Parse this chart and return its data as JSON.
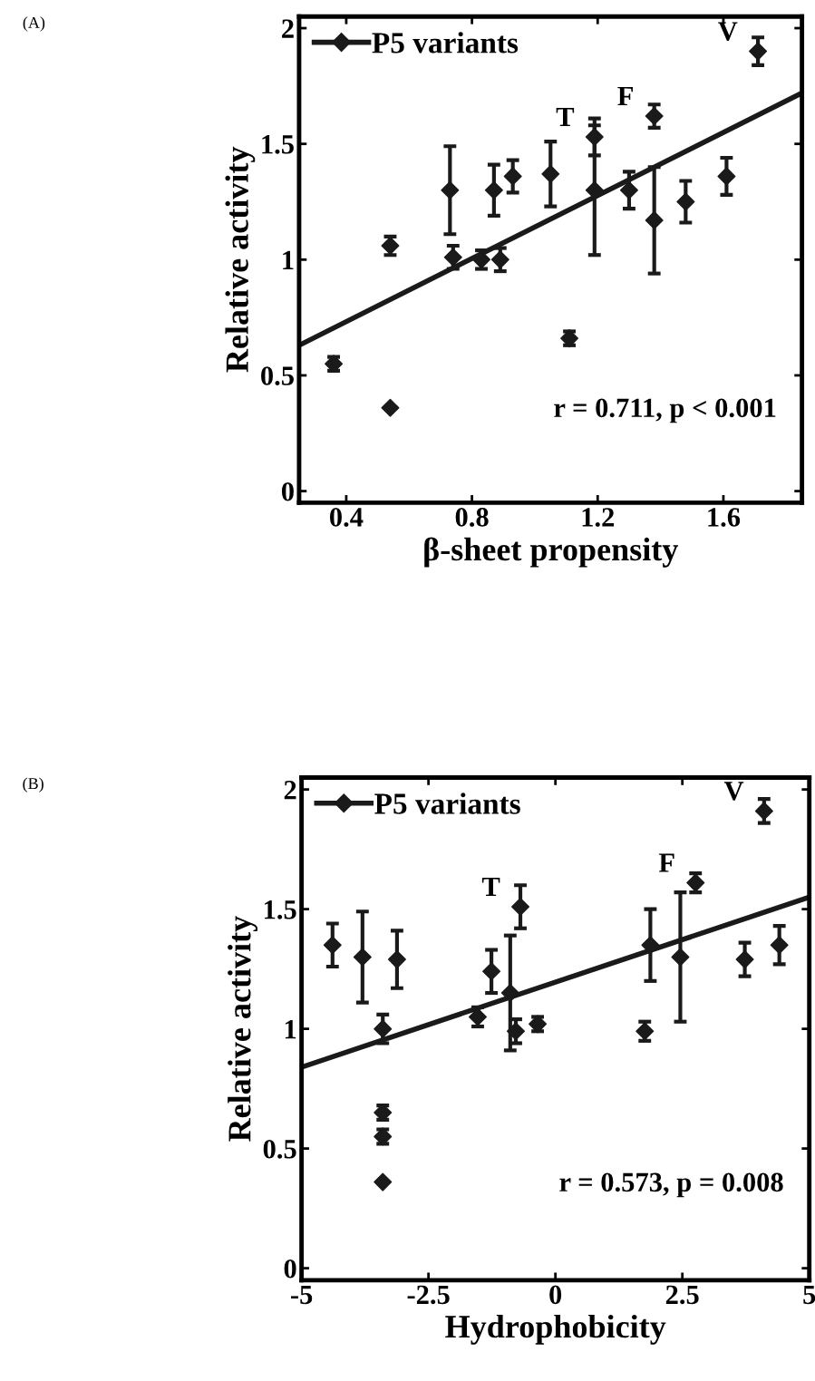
{
  "chart_data": [
    {
      "type": "scatter",
      "xlabel": "β-sheet propensity",
      "ylabel": "Relative activity",
      "xlim": [
        0.25,
        1.85
      ],
      "ylim": [
        -0.05,
        2.05
      ],
      "xticks": [
        0.4,
        0.8,
        1.2,
        1.6
      ],
      "yticks": [
        0,
        0.5,
        1,
        1.5,
        2
      ],
      "legend": "top left",
      "grid": false,
      "annotations": [
        "(A)",
        "r = 0.711, p < 0.001",
        {
          "text": "T",
          "x": 1.19,
          "y": 1.53
        },
        {
          "text": "F",
          "x": 1.38,
          "y": 1.62
        },
        {
          "text": "V",
          "x": 1.71,
          "y": 1.9
        }
      ],
      "series": [
        {
          "name": "P5 variants",
          "marker": "diamond",
          "color": "#1a1a1a",
          "x": [
            0.36,
            0.54,
            0.54,
            0.73,
            0.74,
            0.83,
            0.89,
            0.87,
            0.93,
            1.05,
            1.11,
            1.19,
            1.19,
            1.3,
            1.38,
            1.38,
            1.48,
            1.61,
            1.71
          ],
          "values": [
            0.55,
            1.06,
            0.36,
            1.3,
            1.01,
            1.0,
            1.0,
            1.3,
            1.36,
            1.37,
            0.66,
            1.53,
            1.3,
            1.3,
            1.17,
            1.62,
            1.25,
            1.36,
            1.9
          ],
          "errors": [
            0.03,
            0.04,
            null,
            0.19,
            0.05,
            0.04,
            0.05,
            0.11,
            0.07,
            0.14,
            0.03,
            0.08,
            0.28,
            0.08,
            0.23,
            0.05,
            0.09,
            0.08,
            0.06
          ]
        },
        {
          "type": "line",
          "color": "#1a1a1a",
          "x": [
            0.25,
            1.85
          ],
          "values": [
            0.63,
            1.72
          ]
        }
      ]
    },
    {
      "type": "scatter",
      "xlabel": "Hydrophobicity",
      "ylabel": "Relative activity",
      "xlim": [
        -5,
        5
      ],
      "ylim": [
        -0.05,
        2.05
      ],
      "xticks": [
        -5,
        -2.5,
        0,
        2.5,
        5
      ],
      "yticks": [
        0,
        0.5,
        1,
        1.5,
        2
      ],
      "legend": "top left",
      "grid": false,
      "annotations": [
        "(B)",
        "r = 0.573, p = 0.008",
        {
          "text": "T",
          "x": -0.69,
          "y": 1.51
        },
        {
          "text": "F",
          "x": 2.76,
          "y": 1.61
        },
        {
          "text": "V",
          "x": 4.11,
          "y": 1.91
        }
      ],
      "series": [
        {
          "name": "P5 variants",
          "marker": "diamond",
          "color": "#1a1a1a",
          "x": [
            -4.39,
            -3.8,
            -3.12,
            -3.4,
            -3.4,
            -3.4,
            -3.4,
            -1.53,
            -1.26,
            -0.89,
            -0.78,
            -0.69,
            -0.35,
            1.76,
            1.87,
            2.46,
            2.76,
            3.73,
            4.41,
            4.11
          ],
          "values": [
            1.35,
            1.3,
            1.29,
            1.0,
            0.65,
            0.55,
            0.36,
            1.05,
            1.24,
            1.15,
            0.99,
            1.51,
            1.02,
            0.99,
            1.35,
            1.3,
            1.61,
            1.29,
            1.35,
            1.91
          ],
          "errors": [
            0.09,
            0.19,
            0.12,
            0.06,
            0.03,
            0.03,
            null,
            0.04,
            0.09,
            0.24,
            0.05,
            0.09,
            0.03,
            0.04,
            0.15,
            0.27,
            0.04,
            0.07,
            0.08,
            0.05
          ]
        },
        {
          "type": "line",
          "color": "#1a1a1a",
          "x": [
            -5,
            5
          ],
          "values": [
            0.84,
            1.55
          ]
        }
      ]
    }
  ]
}
